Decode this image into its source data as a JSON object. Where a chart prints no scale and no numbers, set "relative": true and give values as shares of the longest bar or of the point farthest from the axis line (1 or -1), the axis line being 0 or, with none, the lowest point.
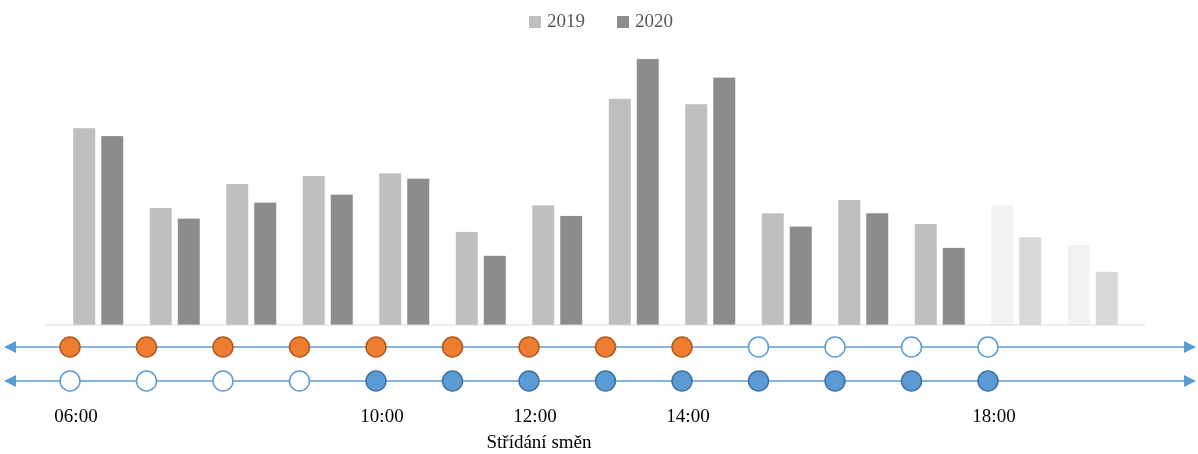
{
  "chart_data": {
    "type": "bar",
    "relative": true,
    "xlabel": "Střídání směn",
    "legend": "top",
    "categories": [
      "06:00",
      null,
      null,
      null,
      "10:00",
      null,
      "12:00",
      null,
      "14:00",
      null,
      null,
      null,
      "18:00",
      null
    ],
    "series": [
      {
        "name": "2019",
        "color": "#bfbfbf",
        "colors": [
          "#bfbfbf",
          "#bfbfbf",
          "#bfbfbf",
          "#bfbfbf",
          "#bfbfbf",
          "#bfbfbf",
          "#bfbfbf",
          "#bfbfbf",
          "#bfbfbf",
          "#bfbfbf",
          "#bfbfbf",
          "#bfbfbf",
          "#f2f2f2",
          "#f2f2f2"
        ],
        "values": [
          0.74,
          0.44,
          0.53,
          0.56,
          0.57,
          0.35,
          0.45,
          0.85,
          0.83,
          0.42,
          0.47,
          0.38,
          0.45,
          0.3
        ]
      },
      {
        "name": "2020",
        "color": "#8c8c8c",
        "colors": [
          "#8c8c8c",
          "#8c8c8c",
          "#8c8c8c",
          "#8c8c8c",
          "#8c8c8c",
          "#8c8c8c",
          "#8c8c8c",
          "#8c8c8c",
          "#8c8c8c",
          "#8c8c8c",
          "#8c8c8c",
          "#8c8c8c",
          "#d9d9d9",
          "#d9d9d9"
        ],
        "values": [
          0.71,
          0.4,
          0.46,
          0.49,
          0.55,
          0.26,
          0.41,
          1,
          0.93,
          0.37,
          0.42,
          0.29,
          0.33,
          0.2
        ]
      }
    ]
  }
}
